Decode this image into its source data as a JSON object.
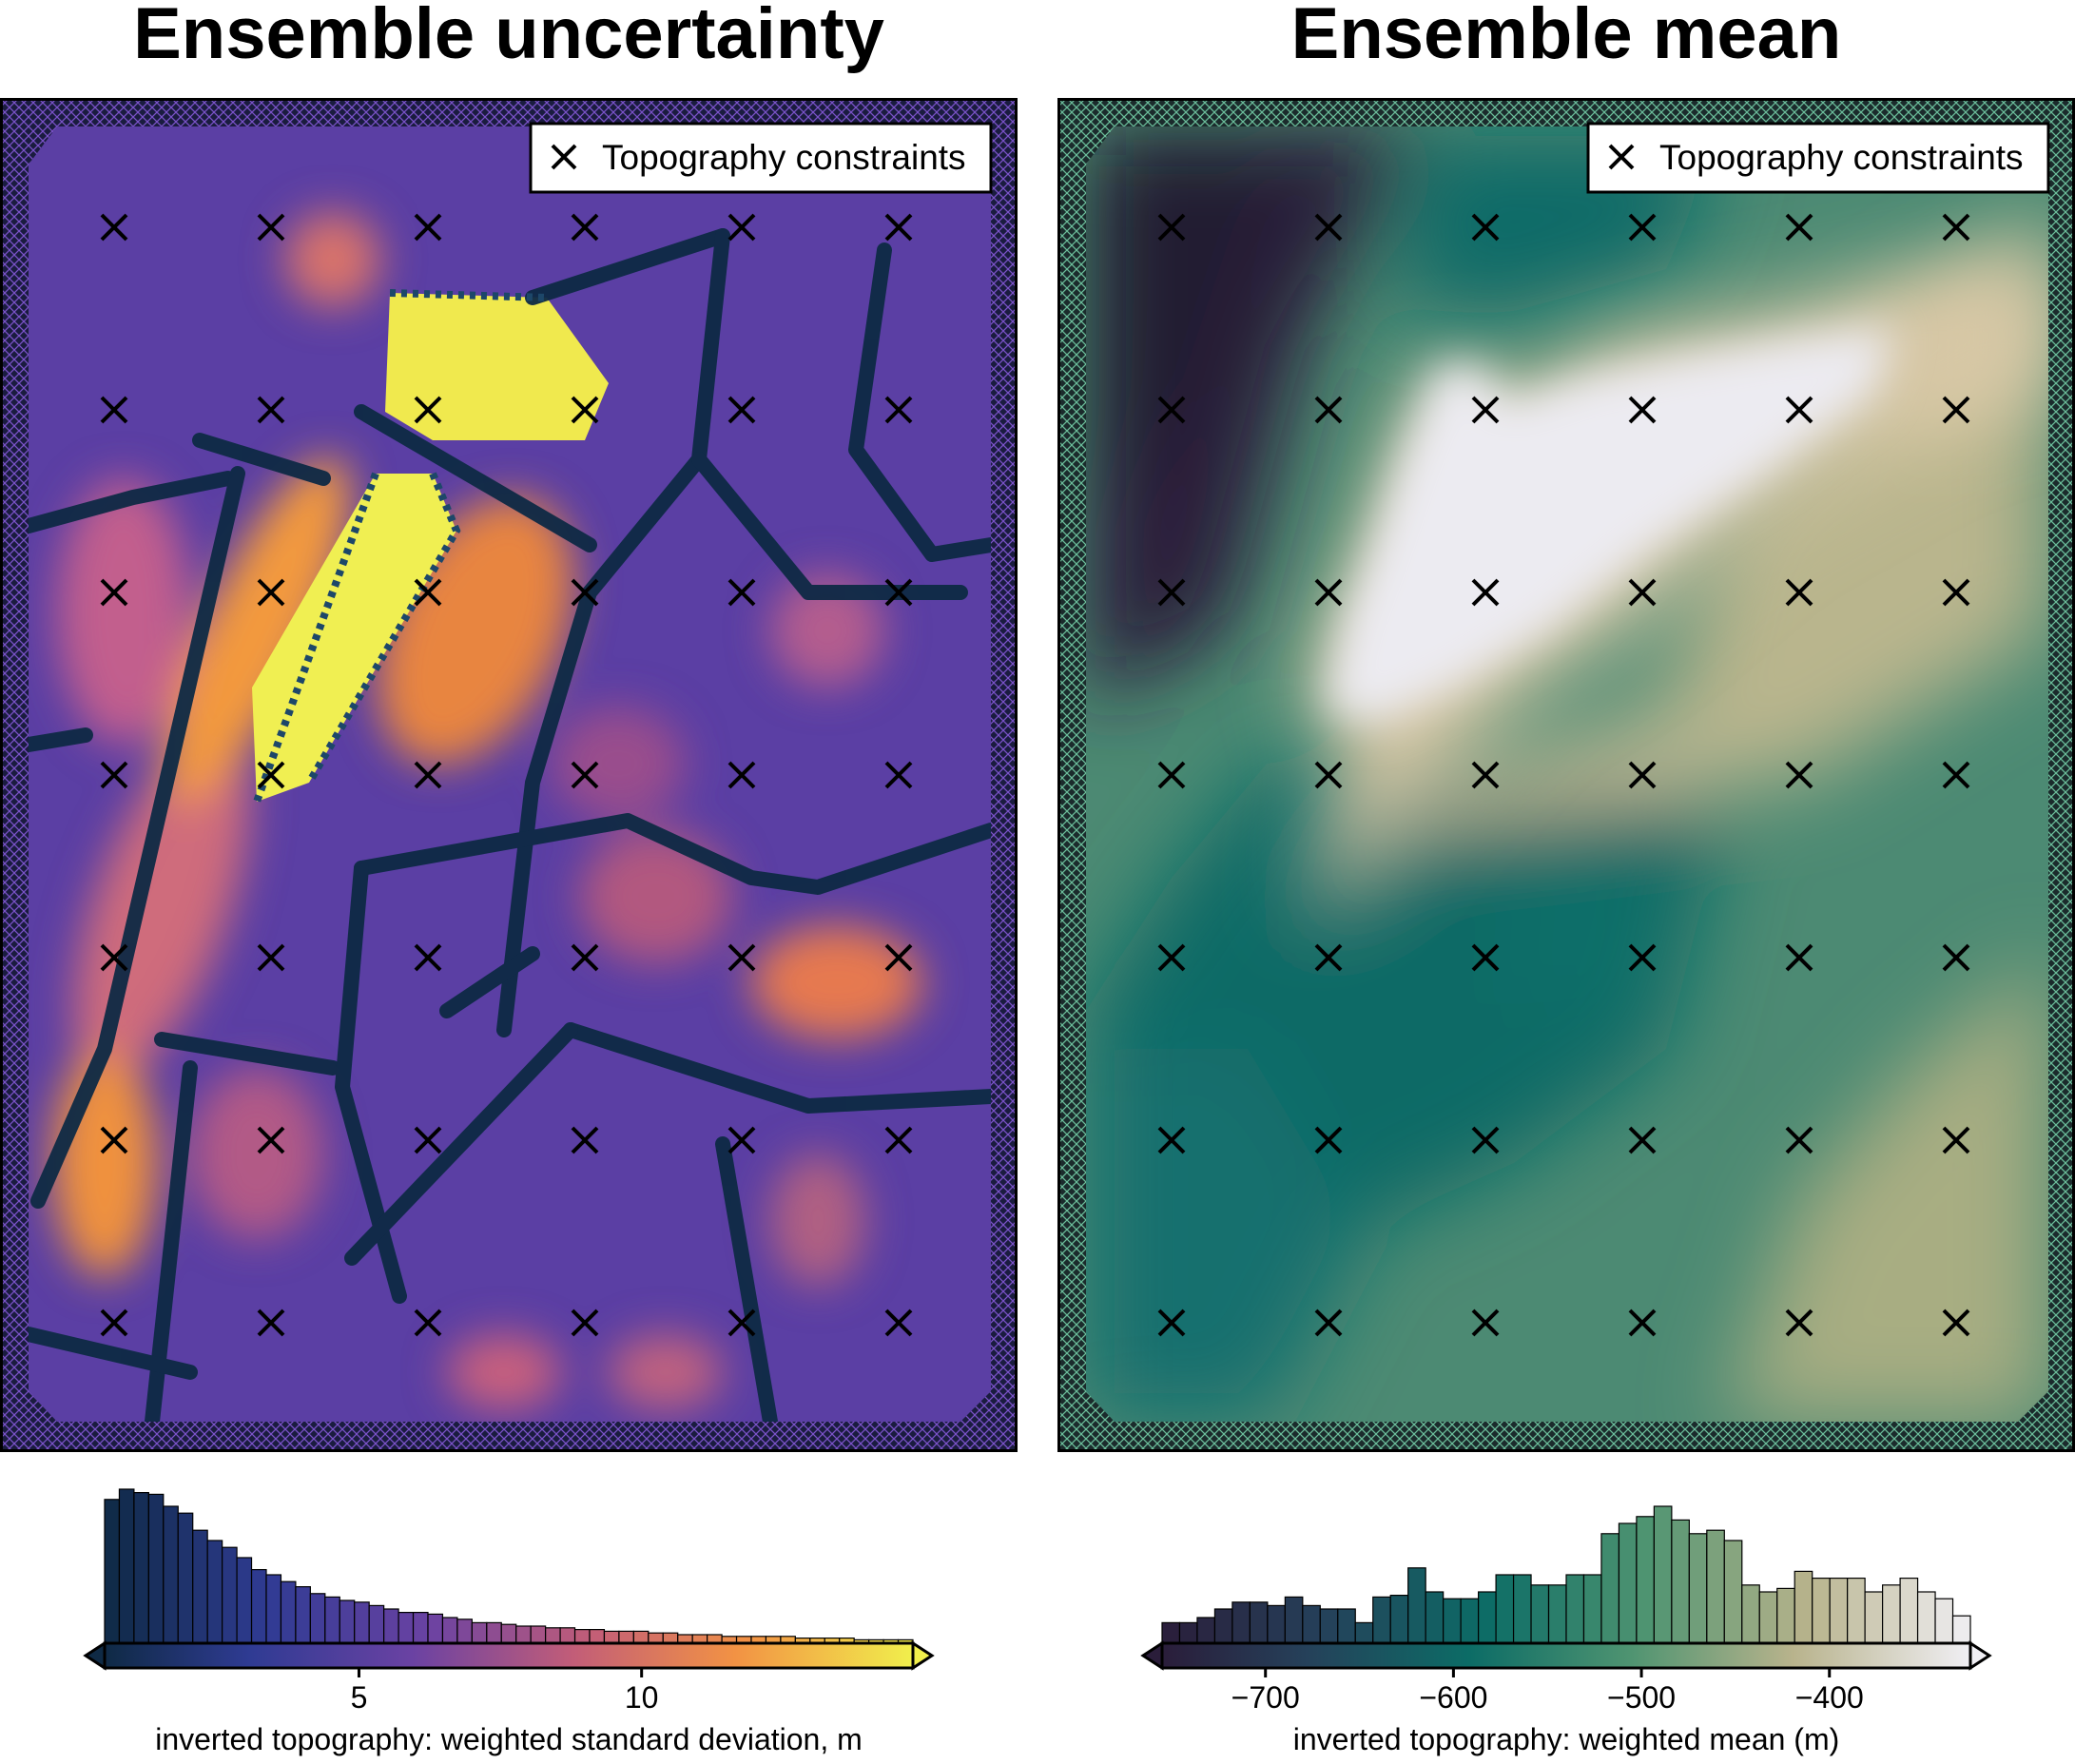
{
  "panels": [
    {
      "title": "Ensemble uncertainty",
      "legend_label": "Topography constraints",
      "colorbar_label": "inverted topography: weighted standard deviation, m",
      "colorbar_ticks": [
        "5",
        "10"
      ],
      "colormap": "plasma-like (dark navy → purple → orange → yellow)"
    },
    {
      "title": "Ensemble mean",
      "legend_label": "Topography constraints",
      "colorbar_label": "inverted topography: weighted mean (m)",
      "colorbar_ticks": [
        "−700",
        "−600",
        "−500",
        "−400"
      ],
      "colormap": "rain-like (dark purple → teal → green → tan → white)"
    }
  ],
  "chart_data": [
    {
      "type": "heatmap",
      "title": "Ensemble uncertainty",
      "colorbar": {
        "label": "inverted topography: weighted standard deviation, m",
        "range": [
          0.5,
          14.8
        ],
        "ticks": [
          5,
          10
        ],
        "extend": "both"
      },
      "histogram": {
        "bin_range": [
          0.5,
          14.8
        ],
        "relative_counts": [
          0.84,
          0.9,
          0.88,
          0.87,
          0.8,
          0.76,
          0.66,
          0.6,
          0.56,
          0.5,
          0.43,
          0.4,
          0.36,
          0.33,
          0.29,
          0.27,
          0.25,
          0.24,
          0.22,
          0.2,
          0.18,
          0.18,
          0.17,
          0.15,
          0.14,
          0.12,
          0.12,
          0.11,
          0.1,
          0.1,
          0.09,
          0.09,
          0.08,
          0.08,
          0.07,
          0.07,
          0.07,
          0.06,
          0.06,
          0.05,
          0.05,
          0.05,
          0.04,
          0.04,
          0.04,
          0.04,
          0.04,
          0.03,
          0.03,
          0.03,
          0.03,
          0.02,
          0.02,
          0.02,
          0.02
        ]
      },
      "constraints": {
        "legend_label": "Topography constraints",
        "marker": "x",
        "columns": 6,
        "rows": 7
      }
    },
    {
      "type": "heatmap",
      "title": "Ensemble mean",
      "colorbar": {
        "label": "inverted topography: weighted mean (m)",
        "range": [
          -755,
          -325
        ],
        "ticks": [
          -700,
          -600,
          -500,
          -400
        ],
        "extend": "both"
      },
      "histogram": {
        "bin_range": [
          -755,
          -325
        ],
        "relative_counts": [
          0.12,
          0.12,
          0.15,
          0.2,
          0.24,
          0.24,
          0.22,
          0.27,
          0.22,
          0.2,
          0.2,
          0.12,
          0.27,
          0.28,
          0.44,
          0.3,
          0.26,
          0.26,
          0.3,
          0.4,
          0.4,
          0.34,
          0.34,
          0.4,
          0.4,
          0.64,
          0.7,
          0.74,
          0.8,
          0.72,
          0.64,
          0.66,
          0.6,
          0.34,
          0.3,
          0.32,
          0.42,
          0.38,
          0.38,
          0.38,
          0.3,
          0.34,
          0.38,
          0.3,
          0.26,
          0.16
        ]
      },
      "constraints": {
        "legend_label": "Topography constraints",
        "marker": "x",
        "columns": 6,
        "rows": 7
      }
    }
  ]
}
